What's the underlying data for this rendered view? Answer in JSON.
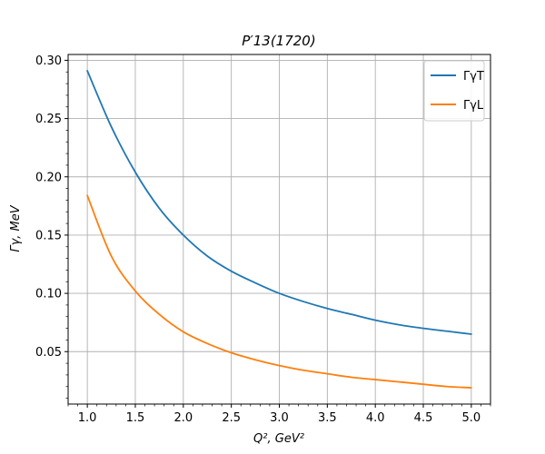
{
  "chart_data": {
    "type": "line",
    "title": "P′13(1720)",
    "xlabel": "Q², GeV²",
    "ylabel": "Γγ, MeV",
    "xlim": [
      0.8,
      5.2
    ],
    "ylim": [
      0.005,
      0.305
    ],
    "x_ticks": [
      1.0,
      1.5,
      2.0,
      2.5,
      3.0,
      3.5,
      4.0,
      4.5,
      5.0
    ],
    "y_ticks": [
      0.05,
      0.1,
      0.15,
      0.2,
      0.25,
      0.3
    ],
    "x_tick_labels": [
      "1.0",
      "1.5",
      "2.0",
      "2.5",
      "3.0",
      "3.5",
      "4.0",
      "4.5",
      "5.0"
    ],
    "y_tick_labels": [
      "0.05",
      "0.10",
      "0.15",
      "0.20",
      "0.25",
      "0.30"
    ],
    "grid": true,
    "legend_position": "top-right",
    "x": [
      1.0,
      1.25,
      1.5,
      1.75,
      2.0,
      2.25,
      2.5,
      2.75,
      3.0,
      3.25,
      3.5,
      3.75,
      4.0,
      4.25,
      4.5,
      4.75,
      5.0
    ],
    "series": [
      {
        "name": "ΓγT",
        "color": "#1f77b4",
        "values": [
          0.291,
          0.243,
          0.204,
          0.173,
          0.15,
          0.132,
          0.119,
          0.109,
          0.1,
          0.093,
          0.087,
          0.082,
          0.077,
          0.073,
          0.07,
          0.0675,
          0.065
        ]
      },
      {
        "name": "ΓγL",
        "color": "#ff7f0e",
        "values": [
          0.184,
          0.132,
          0.102,
          0.082,
          0.067,
          0.057,
          0.049,
          0.043,
          0.038,
          0.034,
          0.031,
          0.028,
          0.026,
          0.024,
          0.022,
          0.02,
          0.019
        ]
      }
    ]
  }
}
